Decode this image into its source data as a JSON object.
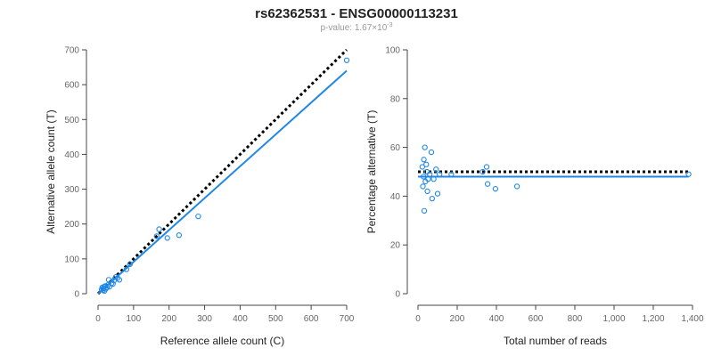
{
  "title": "rs62362531 - ENSG00000113231",
  "subtitle_prefix": "p-value: 1.67×10",
  "subtitle_exponent": "-3",
  "colors": {
    "points": "#1f88e5",
    "fit": "#1f88e5",
    "reference": "#000000"
  },
  "chart_data": [
    {
      "type": "scatter",
      "xlabel": "Reference allele count (C)",
      "ylabel": "Alternative allele count (T)",
      "xlim": [
        0,
        700
      ],
      "ylim": [
        0,
        700
      ],
      "x_ticks": [
        0,
        100,
        200,
        300,
        400,
        500,
        600,
        700
      ],
      "y_ticks": [
        0,
        100,
        200,
        300,
        400,
        500,
        600,
        700
      ],
      "x_tick_labels": [
        "0",
        "100",
        "200",
        "300",
        "400",
        "500",
        "600",
        "700"
      ],
      "y_tick_labels": [
        "0",
        "100",
        "200",
        "300",
        "400",
        "500",
        "600",
        "700"
      ],
      "points": [
        {
          "x": 10,
          "y": 12
        },
        {
          "x": 12,
          "y": 18
        },
        {
          "x": 14,
          "y": 10
        },
        {
          "x": 15,
          "y": 15
        },
        {
          "x": 17,
          "y": 20
        },
        {
          "x": 18,
          "y": 8
        },
        {
          "x": 20,
          "y": 22
        },
        {
          "x": 22,
          "y": 14
        },
        {
          "x": 25,
          "y": 18
        },
        {
          "x": 28,
          "y": 25
        },
        {
          "x": 30,
          "y": 40
        },
        {
          "x": 32,
          "y": 20
        },
        {
          "x": 38,
          "y": 30
        },
        {
          "x": 42,
          "y": 28
        },
        {
          "x": 45,
          "y": 38
        },
        {
          "x": 50,
          "y": 48
        },
        {
          "x": 55,
          "y": 45
        },
        {
          "x": 60,
          "y": 40
        },
        {
          "x": 80,
          "y": 70
        },
        {
          "x": 90,
          "y": 85
        },
        {
          "x": 165,
          "y": 165
        },
        {
          "x": 172,
          "y": 185
        },
        {
          "x": 195,
          "y": 160
        },
        {
          "x": 228,
          "y": 168
        },
        {
          "x": 282,
          "y": 222
        },
        {
          "x": 700,
          "y": 670
        }
      ],
      "fit_line": [
        {
          "x": 0,
          "y": 0
        },
        {
          "x": 700,
          "y": 640
        }
      ],
      "reference_line": [
        {
          "x": 0,
          "y": 0
        },
        {
          "x": 700,
          "y": 700
        }
      ]
    },
    {
      "type": "scatter",
      "xlabel": "Total number of reads",
      "ylabel": "Percentage alternative (T)",
      "xlim": [
        0,
        1400
      ],
      "ylim": [
        0,
        100
      ],
      "x_ticks": [
        0,
        200,
        400,
        600,
        800,
        1000,
        1200,
        1400
      ],
      "y_ticks": [
        0,
        20,
        40,
        60,
        80,
        100
      ],
      "x_tick_labels": [
        "0",
        "200",
        "400",
        "600",
        "800",
        "1,000",
        "1,200",
        "1,400"
      ],
      "y_tick_labels": [
        "0",
        "20",
        "40",
        "60",
        "80",
        "100"
      ],
      "points": [
        {
          "x": 22,
          "y": 52
        },
        {
          "x": 25,
          "y": 44
        },
        {
          "x": 28,
          "y": 48
        },
        {
          "x": 30,
          "y": 55
        },
        {
          "x": 32,
          "y": 34
        },
        {
          "x": 35,
          "y": 60
        },
        {
          "x": 38,
          "y": 46
        },
        {
          "x": 42,
          "y": 53
        },
        {
          "x": 45,
          "y": 50
        },
        {
          "x": 48,
          "y": 42
        },
        {
          "x": 52,
          "y": 47
        },
        {
          "x": 60,
          "y": 49
        },
        {
          "x": 68,
          "y": 58
        },
        {
          "x": 72,
          "y": 39
        },
        {
          "x": 80,
          "y": 47
        },
        {
          "x": 92,
          "y": 51
        },
        {
          "x": 100,
          "y": 41
        },
        {
          "x": 110,
          "y": 49
        },
        {
          "x": 170,
          "y": 49
        },
        {
          "x": 330,
          "y": 50
        },
        {
          "x": 350,
          "y": 52
        },
        {
          "x": 355,
          "y": 45
        },
        {
          "x": 395,
          "y": 43
        },
        {
          "x": 505,
          "y": 44
        },
        {
          "x": 1380,
          "y": 49
        }
      ],
      "fit_line": [
        {
          "x": 0,
          "y": 48
        },
        {
          "x": 1380,
          "y": 48
        }
      ],
      "reference_line": [
        {
          "x": 0,
          "y": 50
        },
        {
          "x": 1380,
          "y": 50
        }
      ]
    }
  ]
}
